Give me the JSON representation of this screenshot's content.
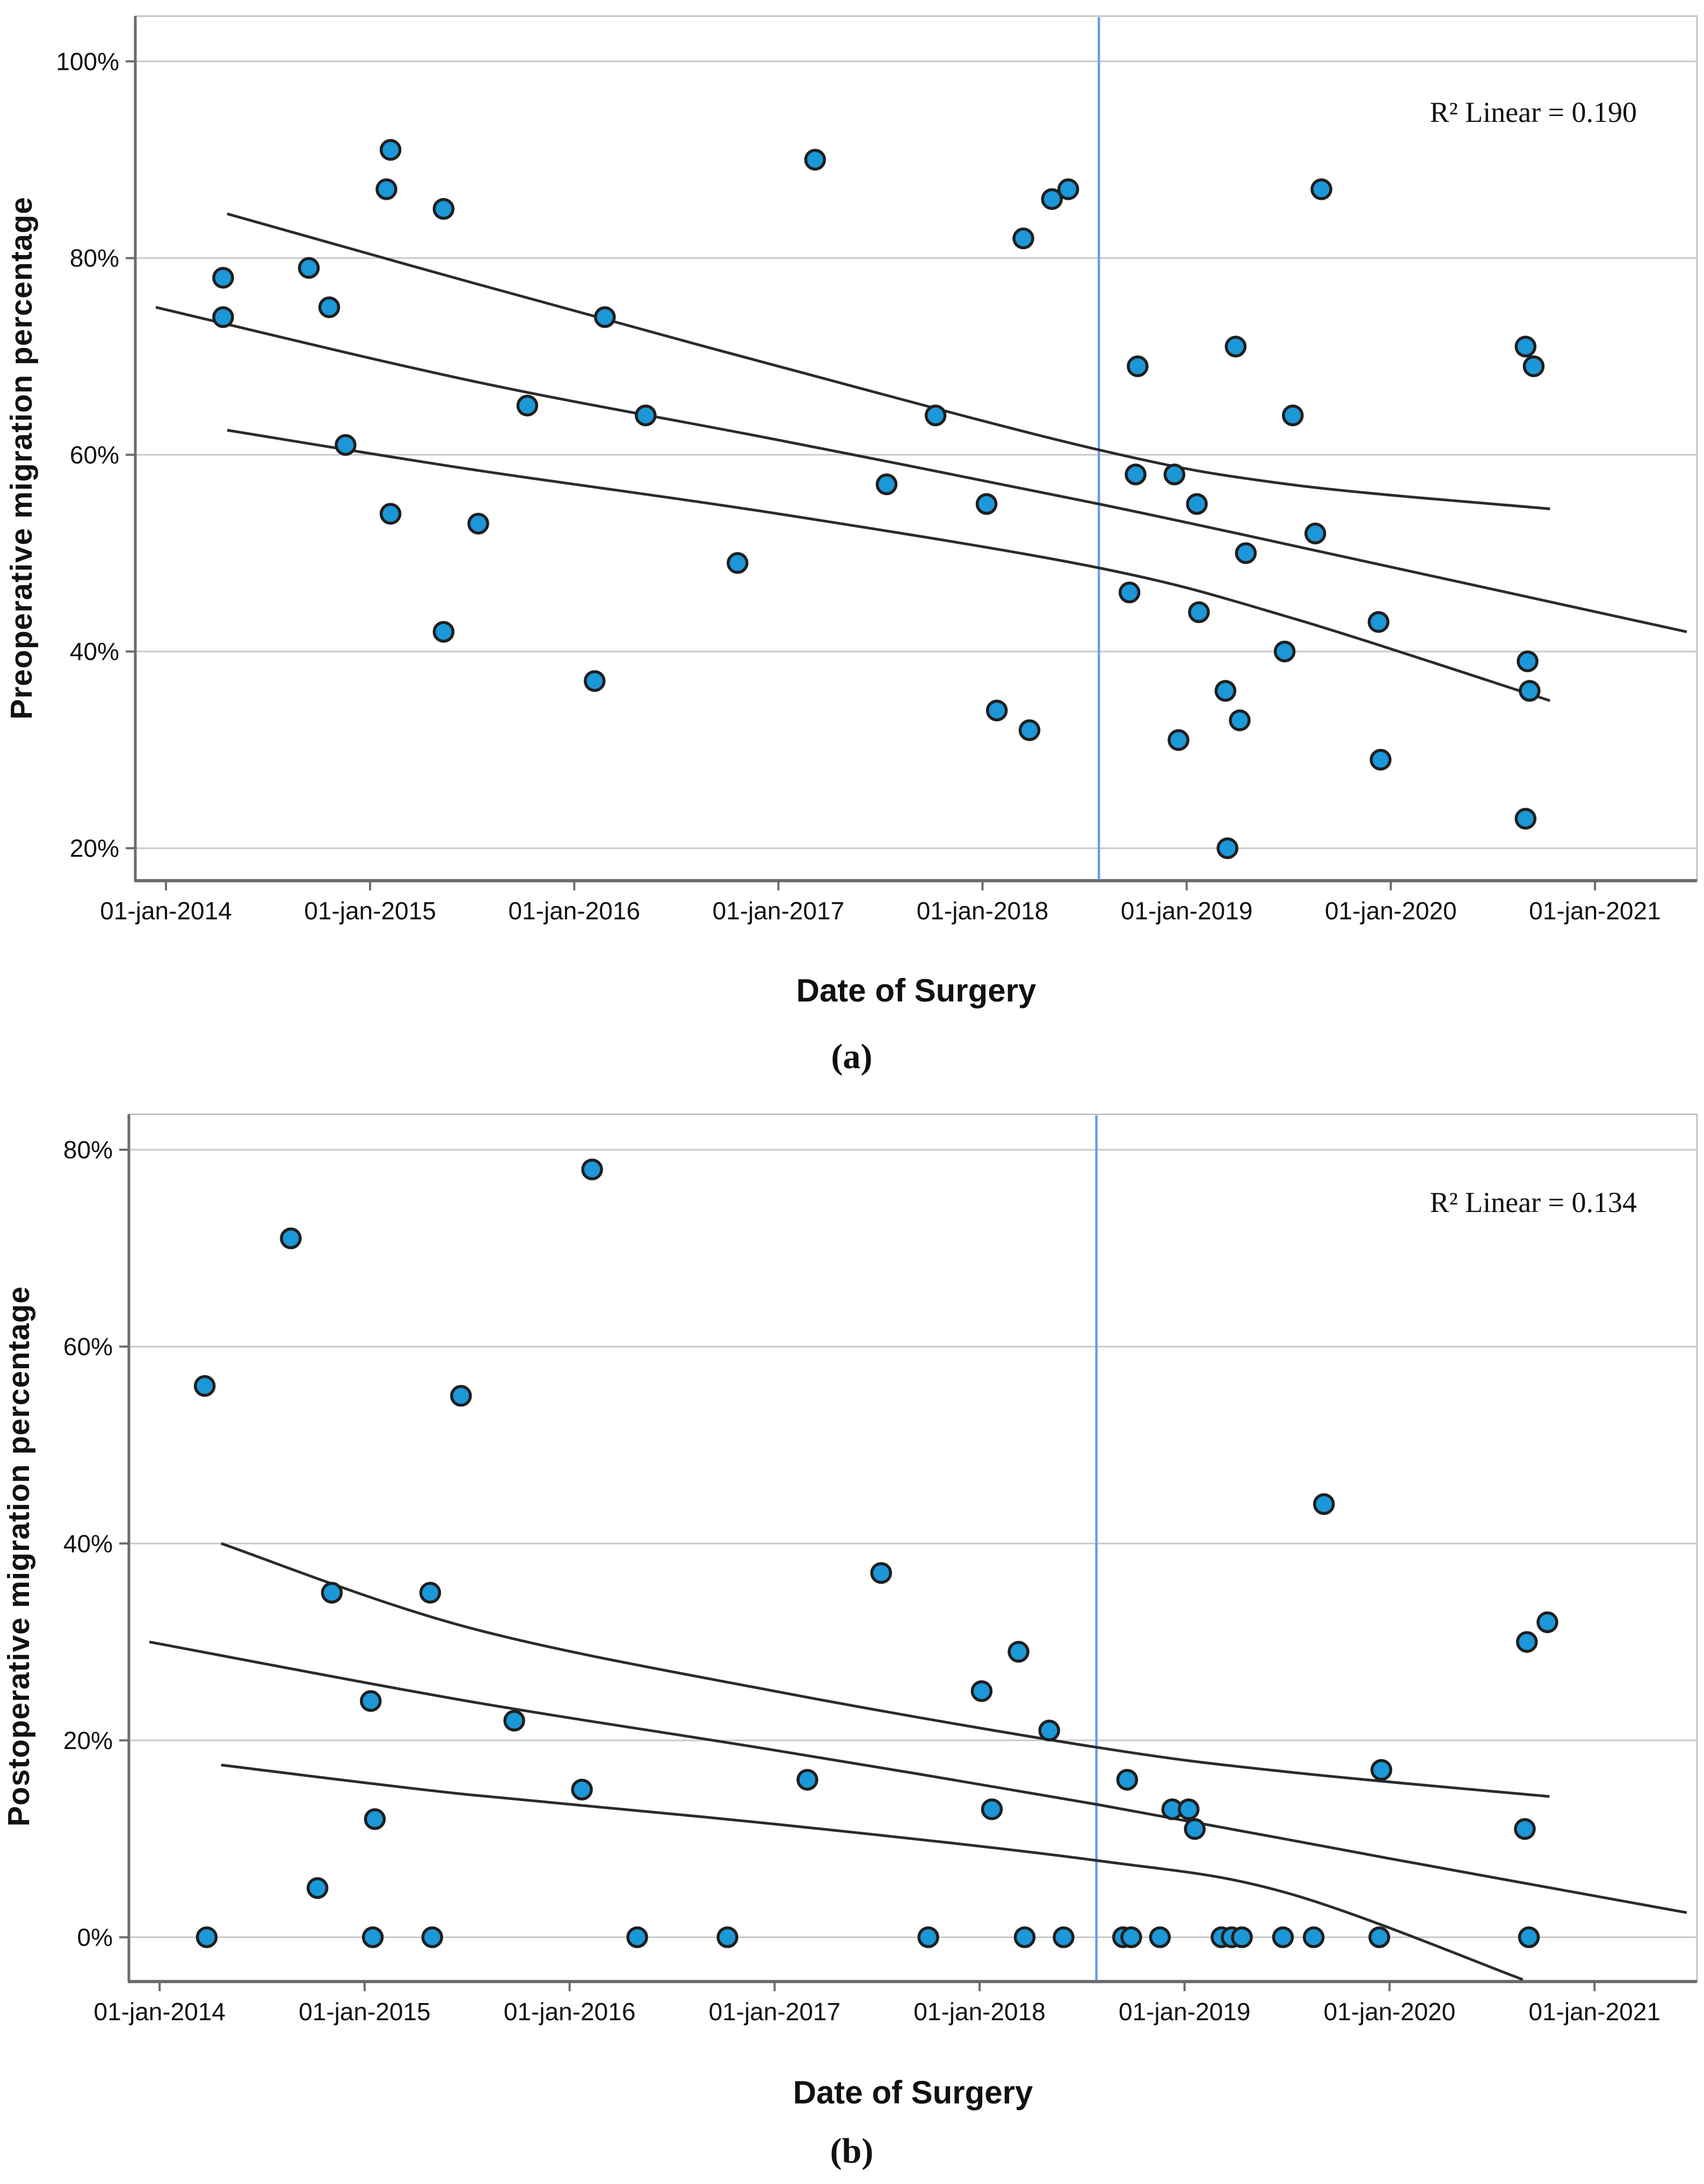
{
  "page": {
    "background": "#ffffff"
  },
  "style": {
    "point_fill": "#1C97D8",
    "point_stroke": "#1f1f1f",
    "fit_line_color": "#2b2b2b",
    "grid_color": "#c9c9c9",
    "axis_color": "#6b6b6b",
    "frame_color": "#b9b9b9",
    "reference_line_color": "#6D9AE8"
  },
  "chart_data": [
    {
      "type": "scatter",
      "panel": "a",
      "caption": "(a)",
      "xlabel": "Date of Surgery",
      "ylabel": "Preoperative migration percentage",
      "annotation": "R² Linear = 0.190",
      "legend_position": "none",
      "grid": "horizontal",
      "xlim": [
        2013.85,
        2021.5
      ],
      "ylim": [
        16.7,
        104.6
      ],
      "x_ticks": [
        {
          "value": 2014,
          "label": "01-jan-2014"
        },
        {
          "value": 2015,
          "label": "01-jan-2015"
        },
        {
          "value": 2016,
          "label": "01-jan-2016"
        },
        {
          "value": 2017,
          "label": "01-jan-2017"
        },
        {
          "value": 2018,
          "label": "01-jan-2018"
        },
        {
          "value": 2019,
          "label": "01-jan-2019"
        },
        {
          "value": 2020,
          "label": "01-jan-2020"
        },
        {
          "value": 2021,
          "label": "01-jan-2021"
        }
      ],
      "y_ticks": [
        {
          "value": 100,
          "label": "100%"
        },
        {
          "value": 80,
          "label": "80%"
        },
        {
          "value": 60,
          "label": "60%"
        },
        {
          "value": 40,
          "label": "40%"
        },
        {
          "value": 20,
          "label": "20%"
        }
      ],
      "reference_line_x": 2018.57,
      "points": [
        [
          2014.28,
          78
        ],
        [
          2014.28,
          74
        ],
        [
          2014.7,
          79
        ],
        [
          2014.8,
          75
        ],
        [
          2014.88,
          61
        ],
        [
          2015.08,
          87
        ],
        [
          2015.1,
          91
        ],
        [
          2015.1,
          54
        ],
        [
          2015.36,
          85
        ],
        [
          2015.36,
          42
        ],
        [
          2015.53,
          53
        ],
        [
          2015.77,
          65
        ],
        [
          2016.1,
          37
        ],
        [
          2016.15,
          74
        ],
        [
          2016.35,
          64
        ],
        [
          2016.8,
          49
        ],
        [
          2017.18,
          90
        ],
        [
          2017.53,
          57
        ],
        [
          2017.77,
          64
        ],
        [
          2018.02,
          55
        ],
        [
          2018.07,
          34
        ],
        [
          2018.2,
          82
        ],
        [
          2018.23,
          32
        ],
        [
          2018.34,
          86
        ],
        [
          2018.42,
          87
        ],
        [
          2018.72,
          46
        ],
        [
          2018.75,
          58
        ],
        [
          2018.76,
          69
        ],
        [
          2018.94,
          58
        ],
        [
          2018.96,
          31
        ],
        [
          2019.05,
          55
        ],
        [
          2019.06,
          44
        ],
        [
          2019.19,
          36
        ],
        [
          2019.2,
          20
        ],
        [
          2019.24,
          71
        ],
        [
          2019.26,
          33
        ],
        [
          2019.29,
          50
        ],
        [
          2019.48,
          40
        ],
        [
          2019.52,
          64
        ],
        [
          2019.63,
          52
        ],
        [
          2019.66,
          87
        ],
        [
          2019.94,
          43
        ],
        [
          2019.95,
          29
        ],
        [
          2020.66,
          71
        ],
        [
          2020.66,
          23
        ],
        [
          2020.67,
          39
        ],
        [
          2020.68,
          36
        ],
        [
          2020.7,
          69
        ]
      ],
      "fit_lines": [
        {
          "name": "upper-ci",
          "points": [
            [
              2014.3,
              84.5
            ],
            [
              2015.5,
              77.5
            ],
            [
              2017.0,
              69.0
            ],
            [
              2018.57,
              60.5
            ],
            [
              2019.5,
              57.0
            ],
            [
              2020.78,
              54.5
            ]
          ]
        },
        {
          "name": "fit",
          "points": [
            [
              2013.95,
              75.0
            ],
            [
              2015.5,
              67.5
            ],
            [
              2017.0,
              61.5
            ],
            [
              2018.57,
              55.0
            ],
            [
              2019.8,
              49.5
            ],
            [
              2021.45,
              42.0
            ]
          ]
        },
        {
          "name": "lower-ci",
          "points": [
            [
              2014.3,
              62.5
            ],
            [
              2015.5,
              58.5
            ],
            [
              2017.0,
              54.0
            ],
            [
              2018.57,
              48.5
            ],
            [
              2019.5,
              43.5
            ],
            [
              2020.78,
              35.0
            ]
          ]
        }
      ]
    },
    {
      "type": "scatter",
      "panel": "b",
      "caption": "(b)",
      "xlabel": "Date of Surgery",
      "ylabel": "Postoperative migration percentage",
      "annotation": "R² Linear = 0.134",
      "legend_position": "none",
      "grid": "horizontal",
      "xlim": [
        2013.85,
        2021.5
      ],
      "ylim": [
        -4.5,
        83.6
      ],
      "x_ticks": [
        {
          "value": 2014,
          "label": "01-jan-2014"
        },
        {
          "value": 2015,
          "label": "01-jan-2015"
        },
        {
          "value": 2016,
          "label": "01-jan-2016"
        },
        {
          "value": 2017,
          "label": "01-jan-2017"
        },
        {
          "value": 2018,
          "label": "01-jan-2018"
        },
        {
          "value": 2019,
          "label": "01-jan-2019"
        },
        {
          "value": 2020,
          "label": "01-jan-2020"
        },
        {
          "value": 2021,
          "label": "01-jan-2021"
        }
      ],
      "y_ticks": [
        {
          "value": 80,
          "label": "80%"
        },
        {
          "value": 60,
          "label": "60%"
        },
        {
          "value": 40,
          "label": "40%"
        },
        {
          "value": 20,
          "label": "20%"
        },
        {
          "value": 0,
          "label": "0%"
        }
      ],
      "reference_line_x": 2018.57,
      "points": [
        [
          2014.22,
          56
        ],
        [
          2014.23,
          0
        ],
        [
          2014.64,
          71
        ],
        [
          2014.77,
          5
        ],
        [
          2014.84,
          35
        ],
        [
          2015.03,
          24
        ],
        [
          2015.05,
          12
        ],
        [
          2015.04,
          0
        ],
        [
          2015.32,
          35
        ],
        [
          2015.33,
          0
        ],
        [
          2015.47,
          55
        ],
        [
          2015.73,
          22
        ],
        [
          2016.06,
          15
        ],
        [
          2016.11,
          78
        ],
        [
          2016.33,
          0
        ],
        [
          2016.77,
          0
        ],
        [
          2017.16,
          16
        ],
        [
          2017.52,
          37
        ],
        [
          2017.75,
          0
        ],
        [
          2018.01,
          25
        ],
        [
          2018.06,
          13
        ],
        [
          2018.19,
          29
        ],
        [
          2018.22,
          0
        ],
        [
          2018.34,
          21
        ],
        [
          2018.41,
          0
        ],
        [
          2018.7,
          0
        ],
        [
          2018.72,
          16
        ],
        [
          2018.74,
          0
        ],
        [
          2018.88,
          0
        ],
        [
          2018.94,
          13
        ],
        [
          2019.02,
          13
        ],
        [
          2019.05,
          11
        ],
        [
          2019.18,
          0
        ],
        [
          2019.23,
          0
        ],
        [
          2019.28,
          0
        ],
        [
          2019.48,
          0
        ],
        [
          2019.63,
          0
        ],
        [
          2019.68,
          44
        ],
        [
          2019.95,
          0
        ],
        [
          2019.96,
          17
        ],
        [
          2020.66,
          11
        ],
        [
          2020.67,
          30
        ],
        [
          2020.68,
          0
        ],
        [
          2020.77,
          32
        ]
      ],
      "fit_lines": [
        {
          "name": "upper-ci",
          "points": [
            [
              2014.3,
              40.0
            ],
            [
              2015.5,
              31.5
            ],
            [
              2017.0,
              25.0
            ],
            [
              2018.57,
              19.3
            ],
            [
              2019.5,
              16.8
            ],
            [
              2020.78,
              14.3
            ]
          ]
        },
        {
          "name": "fit",
          "points": [
            [
              2013.95,
              30.0
            ],
            [
              2015.5,
              24.0
            ],
            [
              2017.0,
              19.0
            ],
            [
              2018.57,
              13.5
            ],
            [
              2020.0,
              8.0
            ],
            [
              2021.45,
              2.5
            ]
          ]
        },
        {
          "name": "lower-ci",
          "points": [
            [
              2014.3,
              17.5
            ],
            [
              2015.5,
              14.5
            ],
            [
              2017.0,
              11.5
            ],
            [
              2018.57,
              7.8
            ],
            [
              2019.5,
              4.5
            ],
            [
              2020.65,
              -4.3
            ]
          ]
        }
      ]
    }
  ]
}
